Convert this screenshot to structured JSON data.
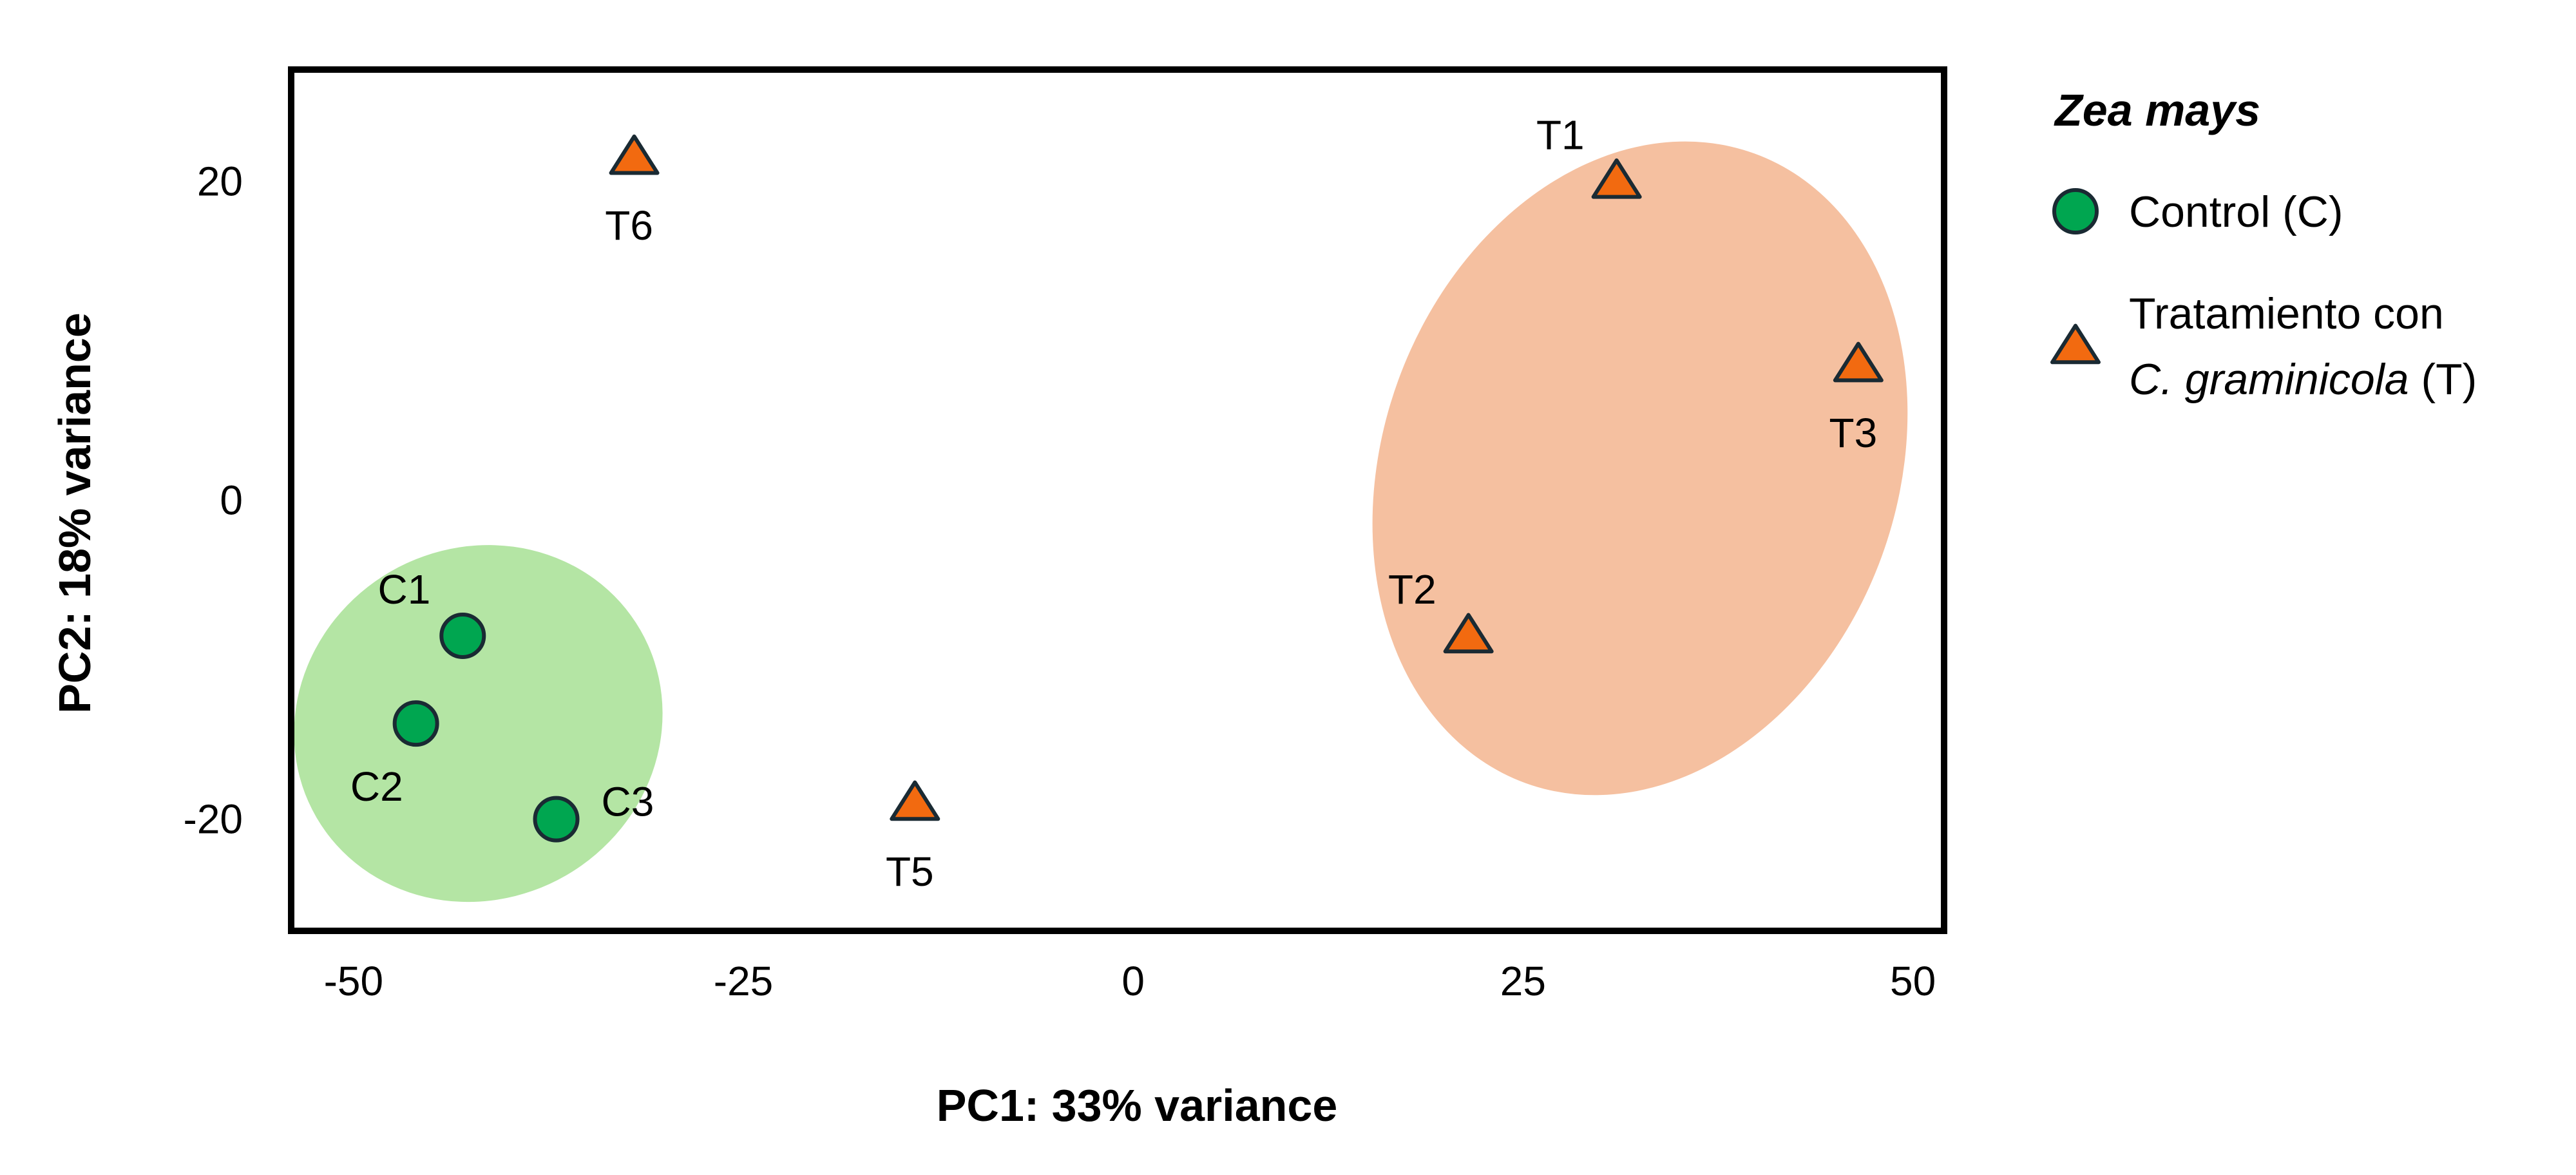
{
  "chart_data": {
    "type": "scatter",
    "title": "",
    "xlabel": "PC1: 33% variance",
    "ylabel": "PC2: 18% variance",
    "xlim": [
      -54,
      52
    ],
    "ylim": [
      -27,
      27
    ],
    "x_ticks": [
      -50,
      -25,
      0,
      25,
      50
    ],
    "y_ticks": [
      20,
      0,
      -20
    ],
    "grid": false,
    "legend_position": "right",
    "legend": {
      "title": "Zea mays",
      "items": [
        {
          "marker": "circle",
          "label": "Control (C)",
          "line2_italic": "",
          "line2_rest": ""
        },
        {
          "marker": "triangle",
          "label": "Tratamiento con",
          "line2_italic": "C. graminicola",
          "line2_rest": " (T)"
        }
      ]
    },
    "series": [
      {
        "name": "Control (C)",
        "marker": "circle",
        "color": "#00a650",
        "points": [
          {
            "label": "C1",
            "x": -43,
            "y": -8.5,
            "label_pos": "upper-left"
          },
          {
            "label": "C2",
            "x": -46,
            "y": -14,
            "label_pos": "lower-left"
          },
          {
            "label": "C3",
            "x": -37,
            "y": -20,
            "label_pos": "right"
          }
        ]
      },
      {
        "name": "Tratamiento con C. graminicola (T)",
        "marker": "triangle",
        "color": "#f26a10",
        "points": [
          {
            "label": "T1",
            "x": 31,
            "y": 20,
            "label_pos": "upper-left"
          },
          {
            "label": "T2",
            "x": 21.5,
            "y": -8.5,
            "label_pos": "upper-left"
          },
          {
            "label": "T3",
            "x": 46.5,
            "y": 8.5,
            "label_pos": "below"
          },
          {
            "label": "T5",
            "x": -14,
            "y": -19,
            "label_pos": "below"
          },
          {
            "label": "T6",
            "x": -32,
            "y": 21.5,
            "label_pos": "below"
          }
        ]
      }
    ],
    "ellipses": [
      {
        "group": "Control (C)",
        "color": "#b4e5a4",
        "cx": -42,
        "cy": -14,
        "rx": 12,
        "ry": 11,
        "angle": -30
      },
      {
        "group": "Tratamiento con C. graminicola (T)",
        "color": "#f5c0a0",
        "cx": 32.5,
        "cy": 2,
        "rx": 16.5,
        "ry": 21,
        "angle": 20
      }
    ]
  }
}
